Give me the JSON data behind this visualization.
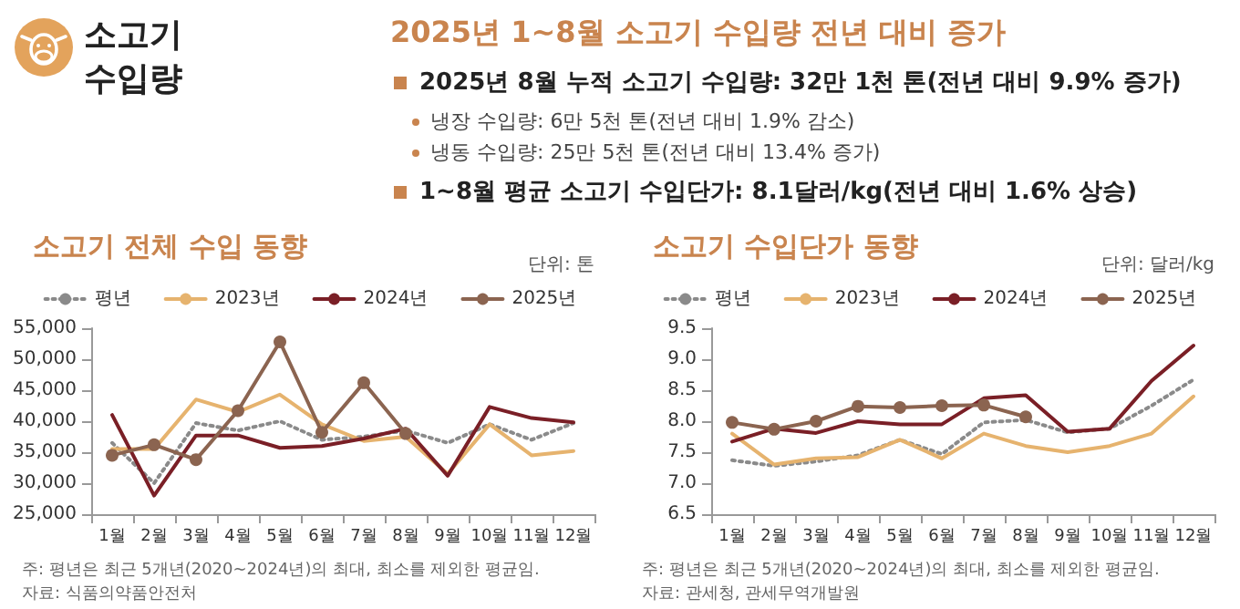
{
  "chart_data": [
    {
      "type": "other",
      "title": "소고기 수입량",
      "subtitle": "2025년 1~8월 소고기 수입량 전년 대비 증가",
      "annotations": [
        "2025년 8월 누적 소고기 수입량: 32만 1천 톤(전년 대비 9.9% 증가)",
        "냉장 수입량: 6만 5천 톤(전년 대비 1.9% 감소)",
        "냉동 수입량: 25만 5천 톤(전년 대비 13.4% 증가)",
        "1~8월 평균 소고기 수입단가: 8.1달러/kg(전년 대비 1.6% 상승)"
      ]
    },
    {
      "type": "line",
      "title": "소고기 전체 수입 동향",
      "annotations": [
        "단위: 톤",
        "주: 평년은 최근 5개년(2020~2024년)의 최대, 최소를 제외한 평균임.",
        "자료: 식품의약품안전처"
      ],
      "categories": [
        "1월",
        "2월",
        "3월",
        "4월",
        "5월",
        "6월",
        "7월",
        "8월",
        "9월",
        "10월",
        "11월",
        "12월"
      ],
      "ylim": [
        25000,
        55000
      ],
      "yticks": [
        {
          "value": 25000,
          "label": "25,000"
        },
        {
          "value": 30000,
          "label": "30,000"
        },
        {
          "value": 35000,
          "label": "35,000"
        },
        {
          "value": 40000,
          "label": "40,000"
        },
        {
          "value": 45000,
          "label": "45,000"
        },
        {
          "value": 50000,
          "label": "50,000"
        },
        {
          "value": 55000,
          "label": "55,000"
        }
      ],
      "grid": false,
      "legend": "top",
      "series": [
        {
          "name": "평년",
          "color": "#8a8a8a",
          "line_style": "dotted",
          "marker": "none",
          "values": [
            36500,
            30000,
            39700,
            38500,
            40000,
            37000,
            37500,
            38500,
            36500,
            39500,
            37000,
            39700
          ]
        },
        {
          "name": "2023년",
          "color": "#e6b36e",
          "line_style": "solid",
          "marker": "none",
          "values": [
            35500,
            35500,
            43500,
            41500,
            44300,
            39500,
            36800,
            37500,
            31500,
            39500,
            34500,
            35200
          ]
        },
        {
          "name": "2024년",
          "color": "#7a1f26",
          "line_style": "solid",
          "marker": "none",
          "values": [
            41000,
            28000,
            37700,
            37700,
            35700,
            36000,
            37200,
            38800,
            31200,
            42300,
            40500,
            39800
          ]
        },
        {
          "name": "2025년",
          "color": "#8b6450",
          "line_style": "solid",
          "marker": "circle",
          "values": [
            34500,
            36200,
            33800,
            41700,
            52800,
            38200,
            46200,
            38000,
            null,
            null,
            null,
            null
          ]
        }
      ]
    },
    {
      "type": "line",
      "title": "소고기 수입단가 동향",
      "annotations": [
        "단위: 달러/kg",
        "주: 평년은 최근 5개년(2020~2024년)의 최대, 최소를 제외한 평균임.",
        "자료: 관세청, 관세무역개발원"
      ],
      "categories": [
        "1월",
        "2월",
        "3월",
        "4월",
        "5월",
        "6월",
        "7월",
        "8월",
        "9월",
        "10월",
        "11월",
        "12월"
      ],
      "ylim": [
        6.5,
        9.5
      ],
      "yticks": [
        {
          "value": 6.5,
          "label": "6.5"
        },
        {
          "value": 7,
          "label": "7.0"
        },
        {
          "value": 7.5,
          "label": "7.5"
        },
        {
          "value": 8,
          "label": "8.0"
        },
        {
          "value": 8.5,
          "label": "8.5"
        },
        {
          "value": 9,
          "label": "9.0"
        },
        {
          "value": 9.5,
          "label": "9.5"
        }
      ],
      "grid": false,
      "legend": "top",
      "series": [
        {
          "name": "평년",
          "color": "#8a8a8a",
          "line_style": "dotted",
          "marker": "none",
          "values": [
            7.37,
            7.28,
            7.35,
            7.45,
            7.7,
            7.47,
            7.98,
            8.02,
            7.82,
            7.88,
            8.25,
            8.67
          ]
        },
        {
          "name": "2023년",
          "color": "#e6b36e",
          "line_style": "solid",
          "marker": "none",
          "values": [
            7.8,
            7.3,
            7.4,
            7.42,
            7.7,
            7.4,
            7.8,
            7.6,
            7.5,
            7.6,
            7.8,
            8.4
          ]
        },
        {
          "name": "2024년",
          "color": "#7a1f26",
          "line_style": "solid",
          "marker": "none",
          "values": [
            7.67,
            7.88,
            7.81,
            8.0,
            7.95,
            7.95,
            8.37,
            8.42,
            7.83,
            7.88,
            8.65,
            9.22
          ]
        },
        {
          "name": "2025년",
          "color": "#8b6450",
          "line_style": "solid",
          "marker": "circle",
          "values": [
            7.98,
            7.87,
            8.0,
            8.24,
            8.22,
            8.25,
            8.26,
            8.07,
            null,
            null,
            null,
            null
          ]
        }
      ]
    }
  ]
}
